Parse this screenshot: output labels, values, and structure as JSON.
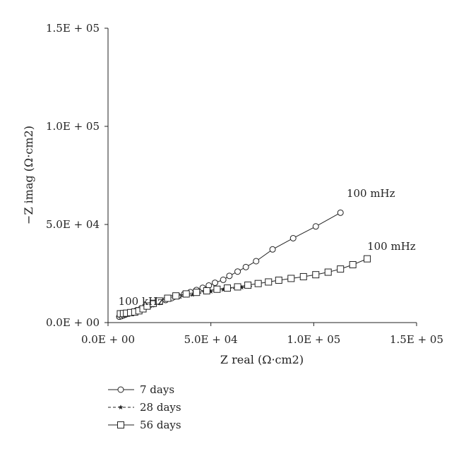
{
  "chart_data": {
    "type": "scatter",
    "title": "",
    "xlabel": "Z real (Ω·cm2)",
    "ylabel": "−Z imag (Ω·cm2)",
    "xlim": [
      0,
      150000
    ],
    "ylim": [
      0,
      150000
    ],
    "x_ticks": [
      0,
      50000,
      100000,
      150000
    ],
    "x_tick_labels": [
      "0.0E + 00",
      "5.0E + 04",
      "1.0E + 05",
      "1.5E + 05"
    ],
    "y_ticks": [
      0,
      50000,
      100000,
      150000
    ],
    "y_tick_labels": [
      "0.0E + 00",
      "5.0E + 04",
      "1.0E + 05",
      "1.5E + 05"
    ],
    "grid": false,
    "legend_position": "bottom-left",
    "annotations": [
      {
        "text": "100 mHz",
        "x": 116000,
        "y": 64000
      },
      {
        "text": "100 mHz",
        "x": 126000,
        "y": 37000
      },
      {
        "text": "100 kHz",
        "x": 5000,
        "y": 9000
      }
    ],
    "series": [
      {
        "name": "7 days",
        "marker": "circle-open",
        "line": "solid",
        "x": [
          5500,
          6500,
          7500,
          8500,
          10000,
          12000,
          14000,
          16000,
          18000,
          20000,
          22000,
          25000,
          28000,
          31000,
          34000,
          37000,
          40000,
          43000,
          46000,
          49000,
          52000,
          56000,
          59000,
          63000,
          67000,
          72000,
          80000,
          90000,
          101000,
          113000
        ],
        "y": [
          3000,
          3300,
          3700,
          4100,
          4700,
          5500,
          6300,
          7100,
          7900,
          8700,
          9400,
          10500,
          11500,
          12500,
          13500,
          14500,
          15500,
          16600,
          17700,
          18900,
          20300,
          21800,
          23800,
          26000,
          28300,
          31300,
          37300,
          43000,
          49000,
          56000
        ]
      },
      {
        "name": "28 days",
        "marker": "star-filled",
        "line": "dashed",
        "x": [
          5000,
          6000,
          7000,
          8000,
          9000,
          10000,
          11000,
          12000,
          13000,
          14000,
          15500,
          17000,
          19000,
          21000,
          23500,
          26000,
          29000,
          32000,
          35000,
          38000,
          41000,
          44000,
          47000,
          50000,
          53000,
          56000,
          59000,
          62000,
          65000,
          69000
        ],
        "y": [
          2800,
          3000,
          3200,
          3500,
          3800,
          4100,
          4500,
          4900,
          5400,
          5900,
          6600,
          7400,
          8300,
          9200,
          10200,
          11000,
          11800,
          12500,
          13100,
          13700,
          14200,
          14800,
          15300,
          15800,
          16300,
          16800,
          17200,
          17600,
          17900,
          18200
        ]
      },
      {
        "name": "56 days",
        "marker": "square-open",
        "line": "solid",
        "x": [
          6000,
          7500,
          9000,
          11000,
          13000,
          15000,
          17000,
          19000,
          22000,
          25000,
          29000,
          33000,
          38000,
          43000,
          48000,
          53000,
          58000,
          63000,
          68000,
          73000,
          78000,
          83000,
          89000,
          95000,
          101000,
          107000,
          113000,
          119000,
          126000
        ],
        "y": [
          4500,
          4600,
          4800,
          5100,
          5400,
          6000,
          7000,
          8400,
          9800,
          11000,
          12400,
          13600,
          14600,
          15400,
          16200,
          17000,
          17600,
          18200,
          19100,
          19900,
          20700,
          21600,
          22500,
          23400,
          24400,
          25700,
          27300,
          29500,
          32500
        ]
      }
    ]
  }
}
